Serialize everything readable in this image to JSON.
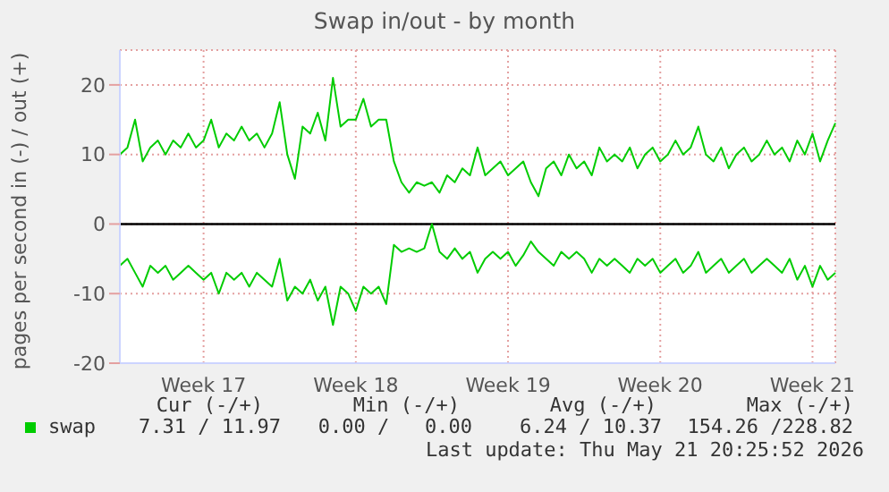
{
  "chart_data": {
    "type": "line",
    "title": "Swap in/out - by month",
    "ylabel": "pages per second in (-) / out (+)",
    "categories": [
      null,
      null,
      null,
      null,
      null,
      null,
      null,
      null,
      null,
      null,
      null,
      "Week 17",
      null,
      null,
      null,
      null,
      null,
      null,
      null,
      null,
      null,
      null,
      null,
      null,
      null,
      null,
      null,
      null,
      null,
      null,
      null,
      "Week 18",
      null,
      null,
      null,
      null,
      null,
      null,
      null,
      null,
      null,
      null,
      null,
      null,
      null,
      null,
      null,
      null,
      null,
      null,
      null,
      "Week 19",
      null,
      null,
      null,
      null,
      null,
      null,
      null,
      null,
      null,
      null,
      null,
      null,
      null,
      null,
      null,
      null,
      null,
      null,
      null,
      "Week 20",
      null,
      null,
      null,
      null,
      null,
      null,
      null,
      null,
      null,
      null,
      null,
      null,
      null,
      null,
      null,
      null,
      null,
      null,
      null,
      "Week 21",
      null,
      null,
      null
    ],
    "series": [
      {
        "name": "swap",
        "color": "#00cc00",
        "values": [
          10,
          11,
          15,
          9,
          11,
          12,
          10,
          12,
          11,
          13,
          11,
          12,
          15,
          11,
          13,
          12,
          14,
          12,
          13,
          11,
          13,
          17.5,
          10,
          6.5,
          14,
          13,
          16,
          12,
          21,
          14,
          15,
          15,
          18,
          14,
          15,
          15,
          9,
          6,
          4.5,
          6,
          5.5,
          6,
          4.5,
          7,
          6,
          8,
          7,
          11,
          7,
          8,
          9,
          7,
          8,
          9,
          6,
          4,
          8,
          9,
          7,
          10,
          8,
          9,
          7,
          11,
          9,
          10,
          9,
          11,
          8,
          10,
          11,
          9,
          10,
          12,
          10,
          11,
          14,
          10,
          9,
          11,
          8,
          10,
          11,
          9,
          10,
          12,
          10,
          11,
          9,
          12,
          10,
          13,
          9,
          12,
          14.5
        ]
      },
      {
        "color": "#00cc00",
        "values": [
          -6,
          -5,
          -7,
          -9,
          -6,
          -7,
          -6,
          -8,
          -7,
          -6,
          -7,
          -8,
          -7,
          -10,
          -7,
          -8,
          -7,
          -9,
          -7,
          -8,
          -9,
          -5,
          -11,
          -9,
          -10,
          -8,
          -11,
          -9,
          -14.5,
          -9,
          -10,
          -12.5,
          -9,
          -10,
          -9,
          -11.5,
          -3,
          -4,
          -3.5,
          -4,
          -3.5,
          0,
          -4,
          -5,
          -3.5,
          -5,
          -4,
          -7,
          -5,
          -4,
          -5,
          -4,
          -6,
          -4.5,
          -2.5,
          -4,
          -5,
          -6,
          -4,
          -5,
          -4,
          -5,
          -7,
          -5,
          -6,
          -5,
          -6,
          -7,
          -5,
          -6,
          -5,
          -7,
          -6,
          -5,
          -7,
          -6,
          -4,
          -7,
          -6,
          -5,
          -7,
          -6,
          -5,
          -7,
          -6,
          -5,
          -6,
          -7,
          -5,
          -8,
          -6,
          -9,
          -6,
          -8,
          -7
        ]
      }
    ],
    "ylim": [
      -20,
      25
    ],
    "yticks": [
      -20,
      -10,
      0,
      10,
      20
    ],
    "ref_lines": [
      {
        "axis": "y",
        "value": 0,
        "color": "#000000"
      }
    ],
    "grid": true,
    "legend": "bottom left",
    "annotations": [
      "Cur (-/+)",
      "Min (-/+)",
      "Avg (-/+)",
      "Max (-/+)",
      "7.31 / 11.97",
      "0.00 /   0.00",
      "6.24 / 10.37",
      "154.26 /228.82",
      "Last update: Thu May 21 20:25:52 2026"
    ]
  }
}
